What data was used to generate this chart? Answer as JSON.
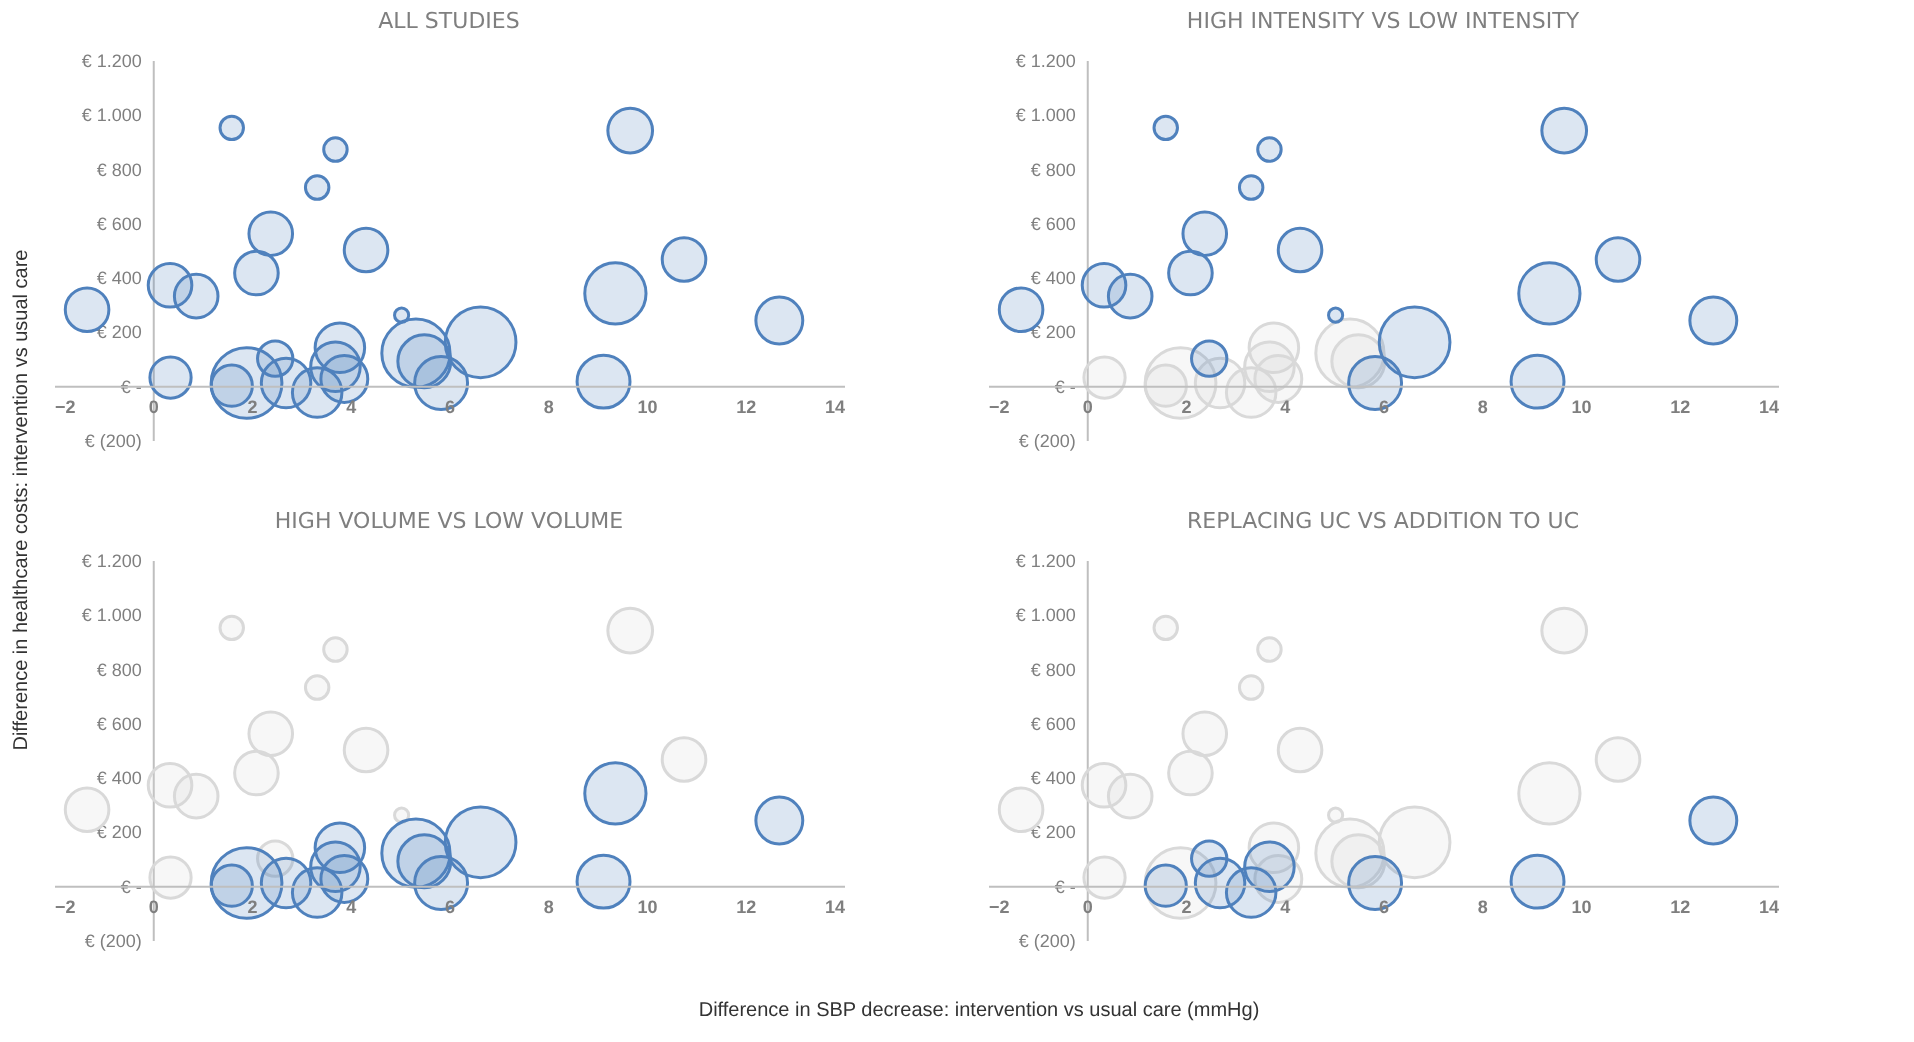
{
  "chart_data": [
    {
      "type": "bubble",
      "title": "ALL STUDIES",
      "xlabel": "Difference in SBP decrease: intervention vs usual care (mmHg)",
      "ylabel": "Difference in healthcare costs: intervention vs usual care",
      "xlim": [
        -2,
        14
      ],
      "xticks": [
        -2,
        0,
        2,
        4,
        6,
        8,
        10,
        12,
        14
      ],
      "ylim": [
        -200,
        1200
      ],
      "yticks": [
        {
          "value": -200,
          "label": "€ (200)"
        },
        {
          "value": 0,
          "label": "€ -"
        },
        {
          "value": 200,
          "label": "€ 200"
        },
        {
          "value": 400,
          "label": "€ 400"
        },
        {
          "value": 600,
          "label": "€ 600"
        },
        {
          "value": 800,
          "label": "€ 800"
        },
        {
          "value": 1000,
          "label": "€ 1.000"
        },
        {
          "value": 1200,
          "label": "€ 1.200"
        }
      ],
      "grid": false,
      "legend": false,
      "series": [
        {
          "color": "#4f81bd",
          "x": [
            1.6,
            3.7,
            3.33,
            9.67,
            2.39,
            4.32,
            2.1,
            0.35,
            0.88,
            -1.33,
            10.76,
            9.37,
            12.69,
            5.04,
            6.64,
            5.33,
            5.84,
            9.13,
            0.36,
            1.6,
            1.9,
            2.48,
            2.7,
            3.33,
            3.79,
            3.7,
            3.88,
            5.5
          ],
          "values": [
            950,
            870,
            730,
            940,
            560,
            500,
            415,
            370,
            330,
            280,
            465,
            340,
            240,
            260,
            160,
            120,
            10,
            15,
            30,
            0,
            10,
            100,
            10,
            -25,
            140,
            70,
            25,
            90
          ],
          "sizes": [
            0.11,
            0.11,
            0.11,
            0.4,
            0.38,
            0.38,
            0.38,
            0.38,
            0.38,
            0.38,
            0.38,
            0.75,
            0.44,
            0.04,
            1,
            0.93,
            0.56,
            0.56,
            0.34,
            0.34,
            1,
            0.25,
            0.49,
            0.49,
            0.49,
            0.49,
            0.44,
            0.56
          ]
        }
      ]
    },
    {
      "type": "bubble",
      "title": "HIGH INTENSITY VS LOW INTENSITY",
      "xlim": [
        -2,
        14
      ],
      "xticks": [
        -2,
        0,
        2,
        4,
        6,
        8,
        10,
        12,
        14
      ],
      "ylim": [
        -200,
        1200
      ],
      "yticks": [
        {
          "value": -200,
          "label": "€ (200)"
        },
        {
          "value": 0,
          "label": "€ -"
        },
        {
          "value": 200,
          "label": "€ 200"
        },
        {
          "value": 400,
          "label": "€ 400"
        },
        {
          "value": 600,
          "label": "€ 600"
        },
        {
          "value": 800,
          "label": "€ 800"
        },
        {
          "value": 1000,
          "label": "€ 1.000"
        },
        {
          "value": 1200,
          "label": "€ 1.200"
        }
      ],
      "grid": false,
      "legend": false,
      "series": [
        {
          "color": "#d9d9d9",
          "x": [
            5.33,
            0.36,
            1.6,
            1.9,
            2.7,
            3.33,
            3.79,
            3.7,
            3.88,
            5.5
          ],
          "values": [
            120,
            30,
            0,
            10,
            10,
            -25,
            140,
            70,
            25,
            90
          ],
          "sizes": [
            0.93,
            0.34,
            0.34,
            1,
            0.49,
            0.49,
            0.49,
            0.49,
            0.44,
            0.56
          ]
        },
        {
          "color": "#4f81bd",
          "x": [
            1.6,
            3.7,
            3.33,
            9.67,
            2.39,
            4.32,
            2.1,
            0.35,
            0.88,
            -1.33,
            10.76,
            9.37,
            12.69,
            5.04,
            6.64,
            5.84,
            9.13,
            2.48
          ],
          "values": [
            950,
            870,
            730,
            940,
            560,
            500,
            415,
            370,
            330,
            280,
            465,
            340,
            240,
            260,
            160,
            10,
            15,
            100
          ],
          "sizes": [
            0.11,
            0.11,
            0.11,
            0.4,
            0.38,
            0.38,
            0.38,
            0.38,
            0.38,
            0.38,
            0.38,
            0.75,
            0.44,
            0.04,
            1,
            0.56,
            0.56,
            0.25
          ]
        }
      ]
    },
    {
      "type": "bubble",
      "title": "HIGH VOLUME VS LOW VOLUME",
      "xlim": [
        -2,
        14
      ],
      "xticks": [
        -2,
        0,
        2,
        4,
        6,
        8,
        10,
        12,
        14
      ],
      "ylim": [
        -200,
        1200
      ],
      "yticks": [
        {
          "value": -200,
          "label": "€ (200)"
        },
        {
          "value": 0,
          "label": "€ -"
        },
        {
          "value": 200,
          "label": "€ 200"
        },
        {
          "value": 400,
          "label": "€ 400"
        },
        {
          "value": 600,
          "label": "€ 600"
        },
        {
          "value": 800,
          "label": "€ 800"
        },
        {
          "value": 1000,
          "label": "€ 1.000"
        },
        {
          "value": 1200,
          "label": "€ 1.200"
        }
      ],
      "grid": false,
      "legend": false,
      "series": [
        {
          "color": "#d9d9d9",
          "x": [
            1.6,
            3.7,
            3.33,
            9.67,
            2.39,
            4.32,
            2.1,
            0.35,
            0.88,
            -1.33,
            10.76,
            5.04,
            0.36,
            2.48
          ],
          "values": [
            950,
            870,
            730,
            940,
            560,
            500,
            415,
            370,
            330,
            280,
            465,
            260,
            30,
            100
          ],
          "sizes": [
            0.11,
            0.11,
            0.11,
            0.4,
            0.38,
            0.38,
            0.38,
            0.38,
            0.38,
            0.38,
            0.38,
            0.04,
            0.34,
            0.25
          ]
        },
        {
          "color": "#4f81bd",
          "x": [
            9.37,
            12.69,
            6.64,
            5.33,
            5.84,
            9.13,
            1.6,
            1.9,
            2.7,
            3.33,
            3.79,
            3.7,
            3.88,
            5.5
          ],
          "values": [
            340,
            240,
            160,
            120,
            10,
            15,
            0,
            10,
            10,
            -25,
            140,
            70,
            25,
            90
          ],
          "sizes": [
            0.75,
            0.44,
            1,
            0.93,
            0.56,
            0.56,
            0.34,
            1,
            0.49,
            0.49,
            0.49,
            0.49,
            0.44,
            0.56
          ]
        }
      ]
    },
    {
      "type": "bubble",
      "title": "REPLACING UC VS ADDITION TO UC",
      "xlim": [
        -2,
        14
      ],
      "xticks": [
        -2,
        0,
        2,
        4,
        6,
        8,
        10,
        12,
        14
      ],
      "ylim": [
        -200,
        1200
      ],
      "yticks": [
        {
          "value": -200,
          "label": "€ (200)"
        },
        {
          "value": 0,
          "label": "€ -"
        },
        {
          "value": 200,
          "label": "€ 200"
        },
        {
          "value": 400,
          "label": "€ 400"
        },
        {
          "value": 600,
          "label": "€ 600"
        },
        {
          "value": 800,
          "label": "€ 800"
        },
        {
          "value": 1000,
          "label": "€ 1.000"
        },
        {
          "value": 1200,
          "label": "€ 1.200"
        }
      ],
      "grid": false,
      "legend": false,
      "series": [
        {
          "color": "#d9d9d9",
          "x": [
            1.6,
            3.7,
            3.33,
            9.67,
            2.39,
            4.32,
            2.1,
            0.35,
            0.88,
            -1.33,
            10.76,
            9.37,
            5.04,
            6.64,
            5.33,
            0.36,
            1.9,
            3.79,
            3.88,
            5.5
          ],
          "values": [
            950,
            870,
            730,
            940,
            560,
            500,
            415,
            370,
            330,
            280,
            465,
            340,
            260,
            160,
            120,
            30,
            10,
            140,
            25,
            90
          ],
          "sizes": [
            0.11,
            0.11,
            0.11,
            0.4,
            0.38,
            0.38,
            0.38,
            0.38,
            0.38,
            0.38,
            0.38,
            0.75,
            0.04,
            1,
            0.93,
            0.34,
            1,
            0.49,
            0.44,
            0.56
          ]
        },
        {
          "color": "#4f81bd",
          "x": [
            12.69,
            5.84,
            9.13,
            1.6,
            2.48,
            2.7,
            3.33,
            3.7
          ],
          "values": [
            240,
            10,
            15,
            0,
            100,
            10,
            -25,
            70
          ],
          "sizes": [
            0.44,
            0.56,
            0.56,
            0.34,
            0.25,
            0.49,
            0.49,
            0.49
          ]
        }
      ]
    }
  ]
}
